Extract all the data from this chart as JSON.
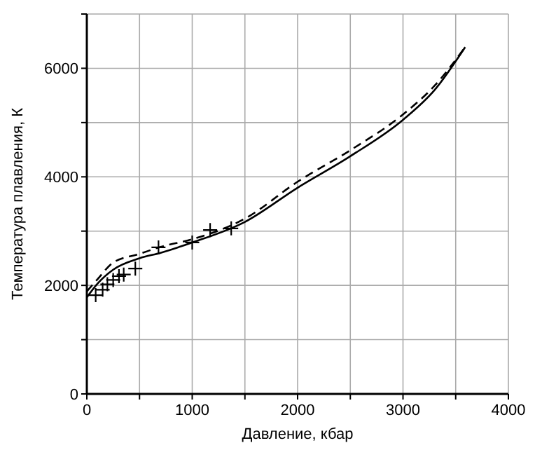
{
  "chart_data": {
    "type": "line",
    "xlabel": "Давление, кбар",
    "ylabel": "Температура плавления, К",
    "xlim": [
      0,
      4000
    ],
    "ylim": [
      0,
      7000
    ],
    "xticks": [
      0,
      {
        "value": 500,
        "label": null
      },
      1000,
      {
        "value": 1500,
        "label": null
      },
      2000,
      {
        "value": 2500,
        "label": null
      },
      3000,
      {
        "value": 3500,
        "label": null
      },
      4000
    ],
    "yticks": [
      0,
      {
        "value": 1000,
        "label": null
      },
      2000,
      {
        "value": 3000,
        "label": null
      },
      4000,
      {
        "value": 5000,
        "label": null
      },
      6000,
      {
        "value": 7000,
        "label": null
      }
    ],
    "grid": true,
    "series": [
      {
        "line_style": "solid",
        "color": "#000000",
        "x": [
          0,
          100,
          250,
          500,
          700,
          1000,
          1500,
          2000,
          2500,
          3000,
          3300,
          3590
        ],
        "values": [
          1780,
          2030,
          2290,
          2500,
          2600,
          2790,
          3170,
          3800,
          4380,
          5050,
          5600,
          6390
        ]
      },
      {
        "line_style": "dashed",
        "color": "#000000",
        "x": [
          0,
          100,
          250,
          500,
          700,
          1000,
          1500,
          2000,
          2500,
          3000,
          3300,
          3590
        ],
        "values": [
          1890,
          2110,
          2420,
          2580,
          2710,
          2850,
          3230,
          3910,
          4490,
          5150,
          5680,
          6390
        ]
      },
      {
        "type": "scatter",
        "marker": "cross",
        "color": "#000000",
        "x": [
          84,
          150,
          195,
          250,
          305,
          350,
          460,
          680,
          1000,
          1170,
          1370
        ],
        "values": [
          1820,
          1920,
          2020,
          2100,
          2170,
          2200,
          2310,
          2700,
          2790,
          3020,
          3050
        ]
      }
    ]
  }
}
